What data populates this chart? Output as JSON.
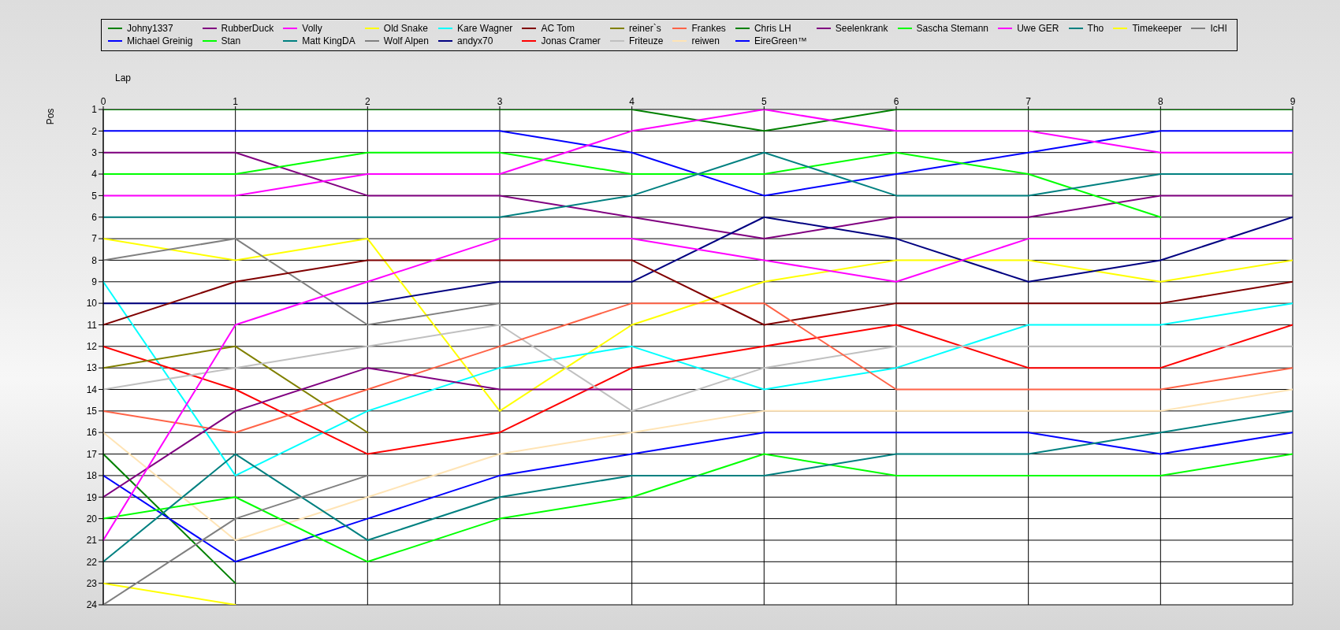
{
  "chart_data": {
    "type": "line",
    "xlabel": "Lap",
    "ylabel": "Pos",
    "x": [
      0,
      1,
      2,
      3,
      4,
      5,
      6,
      7,
      8,
      9
    ],
    "xlim": [
      0,
      9
    ],
    "xticks": [
      0,
      1,
      2,
      3,
      4,
      5,
      6,
      7,
      8,
      9
    ],
    "ylim": [
      24,
      1
    ],
    "yticks": [
      1,
      2,
      3,
      4,
      5,
      6,
      7,
      8,
      9,
      10,
      11,
      12,
      13,
      14,
      15,
      16,
      17,
      18,
      19,
      20,
      21,
      22,
      23,
      24
    ],
    "grid": true,
    "legend": "top",
    "series": [
      {
        "name": "Johny1337",
        "color": "#008000",
        "values": [
          1,
          1,
          1,
          1,
          1,
          2,
          1,
          1,
          1,
          1
        ]
      },
      {
        "name": "Michael Greinig",
        "color": "#0000ff",
        "values": [
          2,
          2,
          2,
          2,
          3,
          5,
          4,
          3,
          2,
          2
        ]
      },
      {
        "name": "RubberDuck",
        "color": "#800080",
        "values": [
          3,
          3,
          5,
          5,
          6,
          7,
          6,
          6,
          5,
          5
        ]
      },
      {
        "name": "Stan",
        "color": "#00ff00",
        "values": [
          4,
          4,
          3,
          3,
          4,
          4,
          3,
          4,
          6,
          null
        ]
      },
      {
        "name": "Volly",
        "color": "#ff00ff",
        "values": [
          5,
          5,
          4,
          4,
          2,
          1,
          2,
          2,
          3,
          3
        ]
      },
      {
        "name": "Matt KingDA",
        "color": "#008080",
        "values": [
          6,
          6,
          6,
          6,
          5,
          3,
          5,
          5,
          4,
          4
        ]
      },
      {
        "name": "Old Snake",
        "color": "#ffff00",
        "values": [
          7,
          8,
          7,
          15,
          11,
          9,
          8,
          8,
          9,
          8
        ]
      },
      {
        "name": "Wolf Alpen",
        "color": "#808080",
        "values": [
          8,
          7,
          11,
          10,
          null,
          null,
          null,
          null,
          null,
          null
        ]
      },
      {
        "name": "Kare Wagner",
        "color": "#00ffff",
        "values": [
          9,
          18,
          15,
          13,
          12,
          14,
          13,
          11,
          11,
          10
        ]
      },
      {
        "name": "andyx70",
        "color": "#000080",
        "values": [
          10,
          10,
          10,
          9,
          9,
          6,
          7,
          9,
          8,
          6
        ]
      },
      {
        "name": "AC Tom",
        "color": "#800000",
        "values": [
          11,
          9,
          8,
          8,
          8,
          11,
          10,
          10,
          10,
          9
        ]
      },
      {
        "name": "Jonas Cramer",
        "color": "#ff0000",
        "values": [
          12,
          14,
          17,
          16,
          13,
          12,
          11,
          13,
          13,
          11
        ]
      },
      {
        "name": "reiner`s",
        "color": "#808000",
        "values": [
          13,
          12,
          16,
          null,
          null,
          null,
          null,
          null,
          null,
          null
        ]
      },
      {
        "name": "Friteuze",
        "color": "#c0c0c0",
        "values": [
          14,
          13,
          12,
          11,
          15,
          13,
          12,
          12,
          12,
          12
        ]
      },
      {
        "name": "Frankes",
        "color": "#ff6347",
        "values": [
          15,
          16,
          14,
          12,
          10,
          10,
          14,
          14,
          14,
          13
        ]
      },
      {
        "name": "reiwen",
        "color": "#ffe4b5",
        "values": [
          16,
          21,
          19,
          17,
          16,
          15,
          15,
          15,
          15,
          14
        ]
      },
      {
        "name": "Chris LH",
        "color": "#008000",
        "values": [
          17,
          23,
          null,
          null,
          null,
          null,
          null,
          null,
          null,
          null
        ]
      },
      {
        "name": "EireGreen™",
        "color": "#0000ff",
        "values": [
          18,
          22,
          20,
          18,
          17,
          16,
          16,
          16,
          17,
          16
        ]
      },
      {
        "name": "Seelenkrank",
        "color": "#800080",
        "values": [
          19,
          15,
          13,
          14,
          14,
          null,
          null,
          null,
          null,
          null
        ]
      },
      {
        "name": "Sascha Stemann",
        "color": "#00ff00",
        "values": [
          20,
          19,
          22,
          20,
          19,
          17,
          18,
          18,
          18,
          17
        ]
      },
      {
        "name": "Uwe GER",
        "color": "#ff00ff",
        "values": [
          21,
          11,
          9,
          7,
          7,
          8,
          9,
          7,
          7,
          7
        ]
      },
      {
        "name": "Tho",
        "color": "#008080",
        "values": [
          22,
          17,
          21,
          19,
          18,
          18,
          17,
          17,
          16,
          15
        ]
      },
      {
        "name": "Timekeeper",
        "color": "#ffff00",
        "values": [
          23,
          24,
          null,
          null,
          null,
          null,
          null,
          null,
          null,
          null
        ]
      },
      {
        "name": "IcHI",
        "color": "#808080",
        "values": [
          24,
          20,
          18,
          null,
          null,
          null,
          null,
          null,
          null,
          null
        ]
      }
    ]
  }
}
